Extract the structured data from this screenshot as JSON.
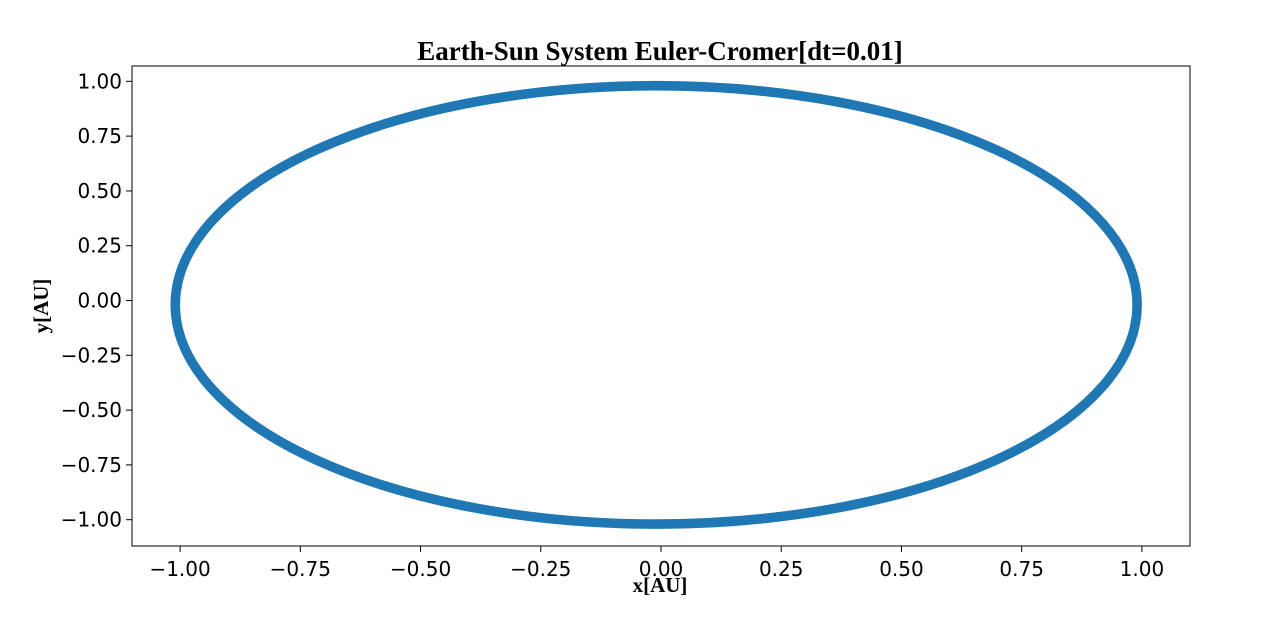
{
  "chart_data": {
    "type": "line",
    "title": "Earth-Sun System Euler-Cromer[dt=0.01]",
    "xlabel": "x[AU]",
    "ylabel": "y[AU]",
    "xlim": [
      -1.1,
      1.1
    ],
    "ylim": [
      -1.12,
      1.07
    ],
    "xticks": [
      -1.0,
      -0.75,
      -0.5,
      -0.25,
      0.0,
      0.25,
      0.5,
      0.75,
      1.0
    ],
    "xtick_labels": [
      "−1.00",
      "−0.75",
      "−0.50",
      "−0.25",
      "0.00",
      "0.25",
      "0.50",
      "0.75",
      "1.00"
    ],
    "yticks": [
      1.0,
      0.75,
      0.5,
      0.25,
      0.0,
      -0.25,
      -0.5,
      -0.75,
      -1.0
    ],
    "ytick_labels": [
      "1.00",
      "0.75",
      "0.50",
      "0.25",
      "0.00",
      "−0.25",
      "−0.50",
      "−0.75",
      "−1.00"
    ],
    "grid": false,
    "legend": false,
    "series": [
      {
        "color": "#1f77b4",
        "orbit": {
          "center": [
            -0.01,
            -0.02
          ],
          "semi_axis_x": 1.0,
          "semi_axis_y": 1.0,
          "band_thickness_au": 0.02
        },
        "x": [
          0.99,
          0.94,
          0.86,
          0.7,
          0.5,
          0.25,
          -0.01,
          -0.27,
          -0.52,
          -0.72,
          -0.88,
          -0.96,
          -1.01,
          -0.96,
          -0.88,
          -0.72,
          -0.52,
          -0.27,
          -0.01,
          0.25,
          0.5,
          0.7,
          0.86,
          0.94,
          0.99
        ],
        "y": [
          -0.02,
          0.24,
          0.48,
          0.69,
          0.84,
          0.94,
          0.98,
          0.94,
          0.84,
          0.69,
          0.48,
          0.24,
          -0.02,
          -0.28,
          -0.52,
          -0.73,
          -0.88,
          -0.98,
          -1.02,
          -0.98,
          -0.88,
          -0.73,
          -0.52,
          -0.28,
          -0.02
        ]
      }
    ]
  }
}
